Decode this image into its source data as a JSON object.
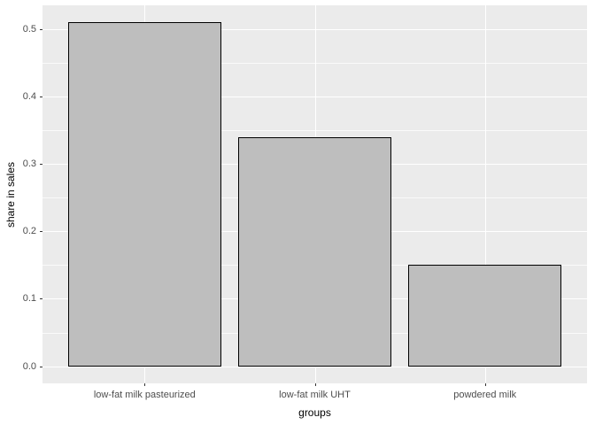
{
  "chart_data": {
    "type": "bar",
    "title": "",
    "categories": [
      "low-fat milk pasteurized",
      "low-fat milk UHT",
      "powdered milk"
    ],
    "values": [
      0.51,
      0.34,
      0.15
    ],
    "xlabel": "groups",
    "ylabel": "share in sales",
    "yticks": [
      0.0,
      0.1,
      0.2,
      0.3,
      0.4,
      0.5
    ],
    "ytick_labels": [
      "0.0",
      "0.1",
      "0.2",
      "0.3",
      "0.4",
      "0.5"
    ],
    "ylim": [
      0,
      0.54
    ],
    "bar_width_fraction": 0.9,
    "grid": true,
    "legend": false,
    "style": "ggplot2",
    "colors": {
      "bar_fill": "#BEBEBE",
      "bar_stroke": "#000000",
      "panel_bg": "#EBEBEB",
      "grid": "#FFFFFF",
      "tick_label": "#4D4D4D",
      "axis_title": "#000000",
      "tick_mark": "#333333",
      "background": "#FFFFFF"
    }
  }
}
